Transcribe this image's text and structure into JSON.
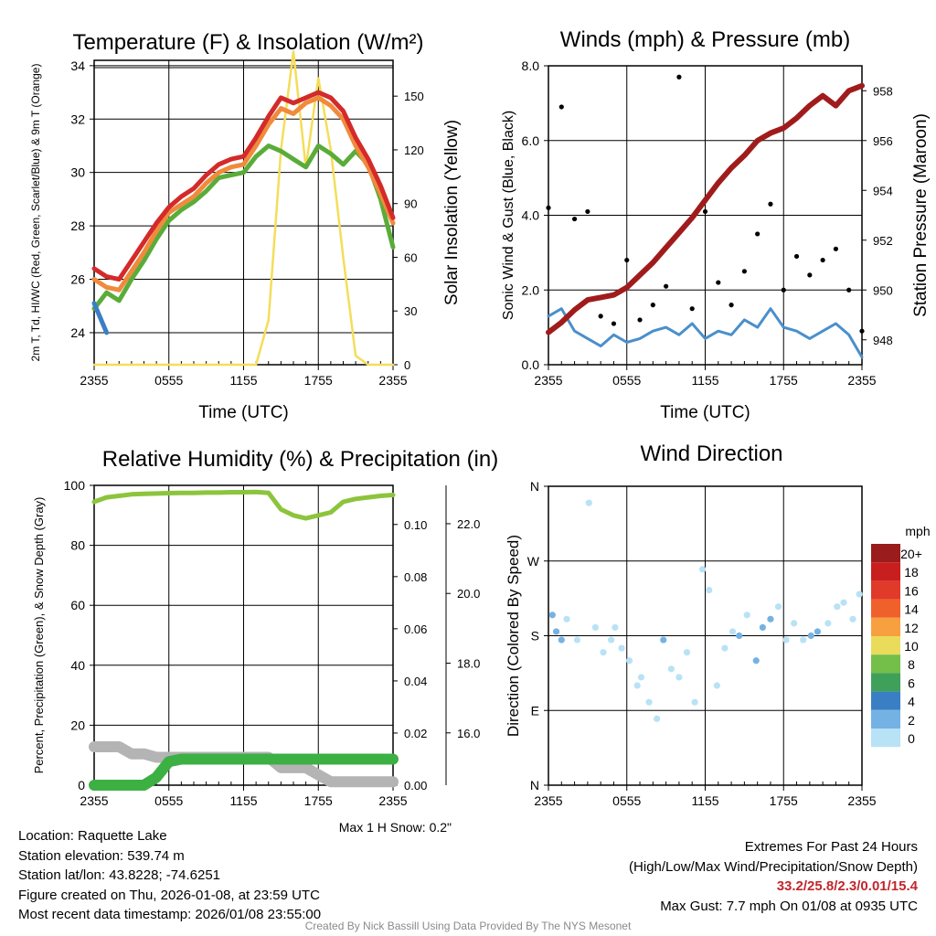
{
  "colors": {
    "temp_2m": "#d42a2a",
    "temp_9m": "#f08a3c",
    "heat_index": "#5aac3a",
    "dewpoint": "#3a7fc4",
    "insolation": "#f5dd5a",
    "pressure": "#a01c1c",
    "wind": "#4a8fcc",
    "gust": "#000000",
    "rh": "#8cc43c",
    "precip": "#3cb043",
    "snow": "#b4b4b4",
    "extremes": "#c0272d"
  },
  "info": {
    "location": "Location: Raquette Lake",
    "elevation": "Station elevation: 539.74 m",
    "latlon": "Station lat/lon: 43.8228; -74.6251",
    "created": "Figure created on Thu, 2026-01-08, at 23:59 UTC",
    "latest": "Most recent data timestamp: 2026/01/08 23:55:00"
  },
  "extremes": {
    "title": "Extremes For Past 24 Hours",
    "legend": "(High/Low/Max Wind/Precipitation/Snow Depth)",
    "values": "33.2/25.8/2.3/0.01/15.4",
    "max_gust": "Max Gust: 7.7 mph On 01/08 at 0935 UTC"
  },
  "credit": "Created By Nick Bassill Using Data Provided By The NYS Mesonet",
  "chart_data": [
    {
      "type": "line",
      "title": "Temperature (F) & Insolation (W/m2)",
      "xlabel": "Time (UTC)",
      "ylabel": "2m T, Td, HI/WC (Red, Green, Scarlet/Blue) & 9m T (Orange)",
      "y2label": "Solar Insolation (Yellow)",
      "x_ticks": [
        "2355",
        "0555",
        "1155",
        "1755",
        "2355"
      ],
      "ylim": [
        22.8,
        34.2
      ],
      "y_ticks": [
        24,
        26,
        28,
        30,
        32,
        34
      ],
      "y2lim": [
        0,
        170
      ],
      "y2_ticks": [
        0,
        30,
        60,
        90,
        120,
        150
      ],
      "x": [
        0,
        1,
        2,
        3,
        4,
        5,
        6,
        7,
        8,
        9,
        10,
        11,
        12,
        13,
        14,
        15,
        16,
        17,
        18,
        19,
        20,
        21,
        22,
        23,
        24
      ],
      "series": [
        {
          "name": "2m T",
          "values": [
            26.4,
            26.1,
            26.0,
            26.7,
            27.4,
            28.1,
            28.7,
            29.1,
            29.4,
            29.9,
            30.3,
            30.5,
            30.6,
            31.3,
            32.1,
            32.8,
            32.6,
            32.8,
            33.0,
            32.8,
            32.3,
            31.3,
            30.5,
            29.5,
            28.3
          ]
        },
        {
          "name": "9m T",
          "values": [
            26.0,
            25.7,
            25.6,
            26.3,
            27.0,
            27.8,
            28.5,
            28.8,
            29.1,
            29.6,
            30.0,
            30.2,
            30.3,
            31.0,
            31.8,
            32.4,
            32.2,
            32.6,
            32.8,
            32.5,
            32.0,
            31.0,
            30.2,
            29.2,
            28.1
          ]
        },
        {
          "name": "Heat Index/Wind Chill",
          "values": [
            24.9,
            25.5,
            25.2,
            26.0,
            26.7,
            27.5,
            28.2,
            28.6,
            28.9,
            29.3,
            29.8,
            29.9,
            30.0,
            30.6,
            31.0,
            30.8,
            30.5,
            30.2,
            31.0,
            30.7,
            30.3,
            30.8,
            30.3,
            29.0,
            27.2
          ]
        },
        {
          "name": "Dewpoint",
          "values": [
            25.1,
            24.0,
            null,
            null,
            null,
            null,
            null,
            null,
            null,
            null,
            null,
            null,
            null,
            null,
            null,
            null,
            null,
            null,
            null,
            null,
            null,
            null,
            null,
            null,
            null
          ]
        },
        {
          "name": "Solar Insolation",
          "axis": "right",
          "values": [
            0,
            0,
            0,
            0,
            0,
            0,
            0,
            0,
            0,
            0,
            0,
            0,
            0,
            0,
            25,
            120,
            175,
            110,
            160,
            120,
            60,
            5,
            0,
            0,
            0
          ]
        }
      ]
    },
    {
      "type": "line",
      "title": "Winds (mph) & Pressure (mb)",
      "xlabel": "Time (UTC)",
      "ylabel": "Sonic Wind & Gust (Blue, Black)",
      "y2label": "Station Pressure (Maroon)",
      "x_ticks": [
        "2355",
        "0555",
        "1155",
        "1755",
        "2355"
      ],
      "ylim": [
        0,
        8
      ],
      "y_ticks": [
        0.0,
        2.0,
        4.0,
        6.0,
        8.0
      ],
      "y2lim": [
        947,
        959
      ],
      "y2_ticks": [
        948,
        950,
        952,
        954,
        956,
        958
      ],
      "x": [
        0,
        1,
        2,
        3,
        4,
        5,
        6,
        7,
        8,
        9,
        10,
        11,
        12,
        13,
        14,
        15,
        16,
        17,
        18,
        19,
        20,
        21,
        22,
        23,
        24
      ],
      "series": [
        {
          "name": "Sonic Wind",
          "values": [
            1.3,
            1.5,
            0.9,
            0.7,
            0.5,
            0.8,
            0.6,
            0.7,
            0.9,
            1.0,
            0.8,
            1.1,
            0.7,
            0.9,
            0.8,
            1.2,
            1.0,
            1.5,
            1.0,
            0.9,
            0.7,
            0.9,
            1.1,
            0.8,
            0.2
          ]
        },
        {
          "name": "Station Pressure",
          "axis": "right",
          "values": [
            948.3,
            948.7,
            949.2,
            949.6,
            949.7,
            949.8,
            950.1,
            950.6,
            951.1,
            951.7,
            952.3,
            952.9,
            953.6,
            954.3,
            954.9,
            955.4,
            956.0,
            956.3,
            956.5,
            956.9,
            957.4,
            957.8,
            957.4,
            958.0,
            958.2
          ]
        },
        {
          "name": "Gust",
          "type": "scatter",
          "values": [
            4.2,
            6.9,
            3.9,
            4.1,
            1.3,
            1.1,
            2.8,
            1.2,
            1.6,
            2.1,
            7.7,
            1.5,
            4.1,
            2.2,
            1.6,
            2.5,
            3.5,
            4.3,
            2.0,
            2.9,
            2.4,
            2.8,
            3.1,
            2.0,
            0.9
          ]
        }
      ]
    },
    {
      "type": "line",
      "title": "Relative Humidity (%) & Precipitation (in)",
      "xlabel": "",
      "ylabel": "Percent, Precipitation (Green), & Snow Depth (Gray)",
      "x_ticks": [
        "2355",
        "0555",
        "1155",
        "1755",
        "2355"
      ],
      "ylim": [
        0,
        100
      ],
      "y_ticks": [
        0,
        20,
        40,
        60,
        80,
        100
      ],
      "y2lim": [
        0,
        0.115
      ],
      "y2_ticks": [
        0.0,
        0.02,
        0.04,
        0.06,
        0.08,
        0.1
      ],
      "y3lim": [
        14.5,
        23.1
      ],
      "y3_ticks": [
        16.0,
        18.0,
        20.0,
        22.0
      ],
      "x": [
        0,
        1,
        2,
        3,
        4,
        5,
        6,
        7,
        8,
        9,
        10,
        11,
        12,
        13,
        14,
        15,
        16,
        17,
        18,
        19,
        20,
        21,
        22,
        23,
        24
      ],
      "series": [
        {
          "name": "Relative Humidity",
          "values": [
            94.5,
            96.0,
            96.5,
            97.0,
            97.2,
            97.3,
            97.4,
            97.5,
            97.5,
            97.6,
            97.6,
            97.7,
            97.7,
            97.8,
            97.5,
            92.0,
            90.0,
            89.0,
            90.0,
            91.0,
            94.5,
            95.5,
            96.0,
            96.5,
            96.8
          ]
        },
        {
          "name": "Precipitation",
          "axis": "right",
          "values": [
            0,
            0,
            0,
            0,
            0,
            0.003,
            0.009,
            0.01,
            0.01,
            0.01,
            0.01,
            0.01,
            0.01,
            0.01,
            0.01,
            0.01,
            0.01,
            0.01,
            0.01,
            0.01,
            0.01,
            0.01,
            0.01,
            0.01,
            0.01
          ]
        },
        {
          "name": "Snow Depth",
          "axis": "right2",
          "values": [
            15.6,
            15.6,
            15.6,
            15.4,
            15.4,
            15.3,
            15.3,
            15.3,
            15.3,
            15.3,
            15.3,
            15.3,
            15.3,
            15.3,
            15.3,
            15.0,
            15.0,
            15.0,
            14.8,
            14.6,
            14.6,
            14.6,
            14.6,
            14.6,
            14.6
          ]
        }
      ],
      "note": "Max 1 H Snow: 0.2\""
    },
    {
      "type": "scatter",
      "title": "Wind Direction",
      "ylabel": "Direction (Colored By Speed)",
      "x_ticks": [
        "2355",
        "0555",
        "1155",
        "1755",
        "2355"
      ],
      "y_ticks": [
        "N",
        "E",
        "S",
        "W",
        "N"
      ],
      "ylim": [
        0,
        360
      ],
      "colorbar_title": "mph",
      "colorbar_labels": [
        "20+",
        "18",
        "16",
        "14",
        "12",
        "10",
        "8",
        "6",
        "4",
        "2",
        "0"
      ],
      "colorbar_colors": [
        "#9b1c1c",
        "#c81e1e",
        "#e03a2a",
        "#f0602a",
        "#f7a040",
        "#eadc5a",
        "#74be4a",
        "#3fa05a",
        "#3a7fc4",
        "#74b2e4",
        "#b8e2f6"
      ],
      "x": [
        0.3,
        0.6,
        1.0,
        1.4,
        2.2,
        3.1,
        3.6,
        4.2,
        4.8,
        5.1,
        5.6,
        6.2,
        6.8,
        7.1,
        7.7,
        8.3,
        8.8,
        9.4,
        10.0,
        10.6,
        11.2,
        11.8,
        12.3,
        12.9,
        13.5,
        14.1,
        14.6,
        15.2,
        15.9,
        16.4,
        17.0,
        17.6,
        18.2,
        18.8,
        19.5,
        20.1,
        20.6,
        21.4,
        22.1,
        22.6,
        23.3,
        23.8
      ],
      "directions": [
        205,
        185,
        175,
        200,
        175,
        340,
        190,
        160,
        175,
        190,
        165,
        150,
        120,
        130,
        100,
        80,
        175,
        140,
        130,
        160,
        100,
        260,
        235,
        120,
        165,
        185,
        180,
        205,
        150,
        190,
        200,
        215,
        175,
        195,
        175,
        180,
        185,
        195,
        215,
        220,
        200,
        230
      ],
      "speeds": [
        3,
        2,
        2,
        1,
        1,
        1,
        1,
        1,
        1,
        0,
        1,
        1,
        1,
        0,
        1,
        1,
        2,
        1,
        1,
        1,
        1,
        1,
        1,
        1,
        1,
        1,
        2,
        1,
        3,
        2,
        2,
        1,
        1,
        1,
        1,
        2,
        2,
        1,
        1,
        1,
        1,
        1
      ]
    }
  ]
}
